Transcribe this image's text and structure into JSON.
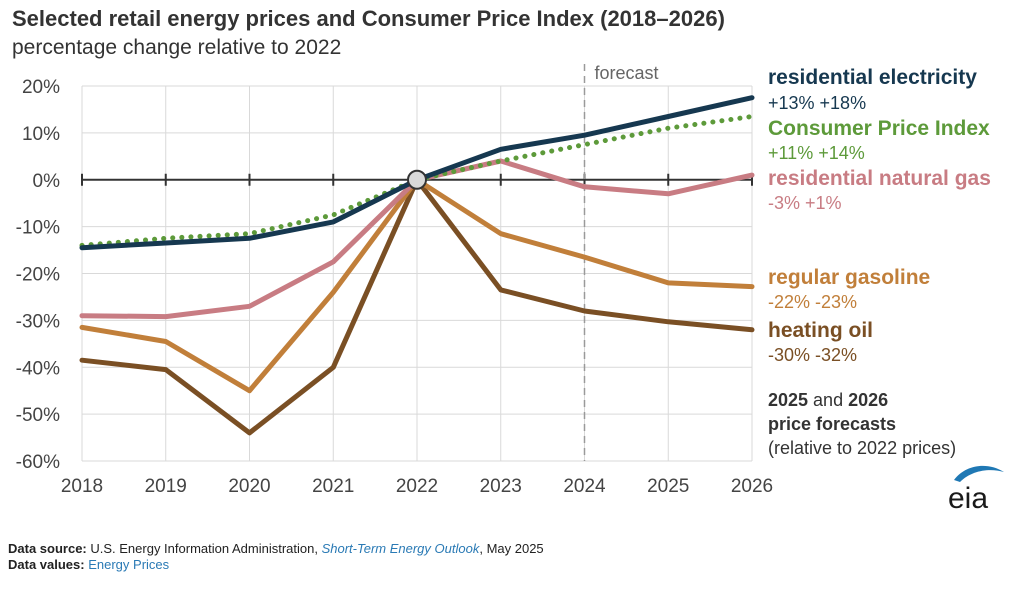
{
  "title": "Selected retail energy prices and Consumer Price Index (2018–2026)",
  "subtitle": "percentage change relative to 2022",
  "forecast_label": "forecast",
  "notes": {
    "line1_a": "2025",
    "line1_and": " and ",
    "line1_b": "2026",
    "line2": "price forecasts",
    "line3": "(relative to 2022 prices)"
  },
  "source": {
    "label": "Data source:",
    "text_before": " U.S. Energy Information Administration, ",
    "publication": "Short-Term Energy Outlook",
    "text_after": ", May 2025"
  },
  "values_line": {
    "label": "Data values:",
    "link": "Energy Prices"
  },
  "logo_text": "eia",
  "legend": [
    {
      "name": "residential electricity",
      "values": "+13% +18%",
      "color": "#163850"
    },
    {
      "name": "Consumer Price Index",
      "values": "+11% +14%",
      "color": "#5d9a3a"
    },
    {
      "name": "residential natural gas",
      "values": "-3% +1%",
      "color": "#c87c83"
    },
    {
      "name": "regular gasoline",
      "values": "-22%   -23%",
      "color": "#c17f3a"
    },
    {
      "name": "heating oil",
      "values": "-30%   -32%",
      "color": "#7a4f24"
    }
  ],
  "chart_data": {
    "type": "line",
    "x": [
      2018,
      2019,
      2020,
      2021,
      2022,
      2023,
      2024,
      2025,
      2026
    ],
    "ylim": [
      -60,
      20
    ],
    "yticks": [
      20,
      10,
      0,
      -10,
      -20,
      -30,
      -40,
      -50,
      -60
    ],
    "ytick_labels": [
      "20%",
      "10%",
      "0%",
      "-10%",
      "-20%",
      "-30%",
      "-40%",
      "-50%",
      "-60%"
    ],
    "xtick_labels": [
      "2018",
      "2019",
      "2020",
      "2021",
      "2022",
      "2023",
      "2024",
      "2025",
      "2026"
    ],
    "forecast_start": 2024,
    "grid": true,
    "series": [
      {
        "name": "residential electricity",
        "color": "#163850",
        "style": "solid",
        "values": [
          -14.5,
          -13.5,
          -12.5,
          -9,
          0,
          6.5,
          9.5,
          13.5,
          17.5
        ]
      },
      {
        "name": "Consumer Price Index",
        "color": "#5d9a3a",
        "style": "dotted",
        "values": [
          -14,
          -12.5,
          -11.5,
          -7.5,
          0,
          4,
          7.5,
          11,
          13.5
        ]
      },
      {
        "name": "residential natural gas",
        "color": "#c87c83",
        "style": "solid",
        "values": [
          -29,
          -29.2,
          -27,
          -17.5,
          0,
          4,
          -1.5,
          -3,
          1
        ]
      },
      {
        "name": "regular gasoline",
        "color": "#c17f3a",
        "style": "solid",
        "values": [
          -31.5,
          -34.5,
          -45,
          -24,
          0,
          -11.5,
          -16.5,
          -22,
          -22.8
        ]
      },
      {
        "name": "heating oil",
        "color": "#7a4f24",
        "style": "solid",
        "values": [
          -38.5,
          -40.5,
          -54,
          -40,
          0,
          -23.5,
          -28,
          -30.3,
          -32
        ]
      }
    ]
  }
}
